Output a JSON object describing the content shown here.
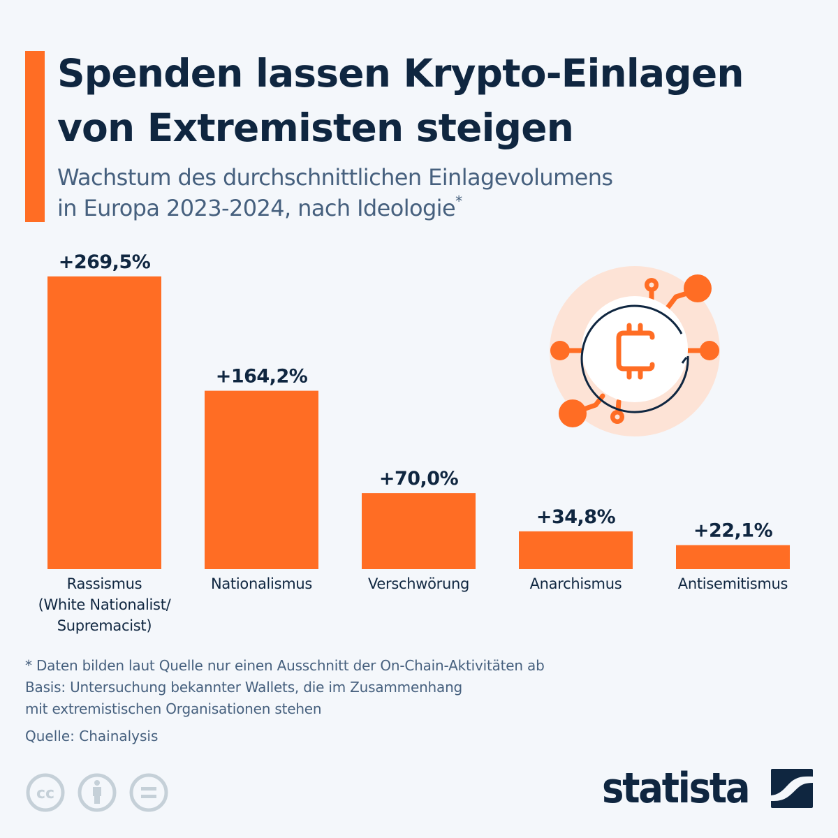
{
  "header": {
    "title": "Spenden lassen Krypto-Einlagen von Extremisten steigen",
    "subtitle_line1": "Wachstum des durchschnittlichen Einlagevolumens",
    "subtitle_line2": "in Europa 2023-2024, nach Ideologie",
    "subtitle_marker": "*"
  },
  "colors": {
    "accent": "#ff6d24",
    "bar": "#ff6d24",
    "text_dark": "#0f2640",
    "text_muted": "#46607e",
    "icon_bg": "#fde3d6",
    "license_grey": "#c5d0d8"
  },
  "chart_data": {
    "type": "bar",
    "title": "Spenden lassen Krypto-Einlagen von Extremisten steigen",
    "subtitle": "Wachstum des durchschnittlichen Einlagevolumens in Europa 2023-2024, nach Ideologie*",
    "xlabel": "",
    "ylabel": "",
    "unit": "%",
    "ylim": [
      0,
      270
    ],
    "grid": false,
    "categories": [
      [
        "Rassismus",
        "(White Nationalist/",
        "Supremacist)"
      ],
      [
        "Nationalismus"
      ],
      [
        "Verschwörung"
      ],
      [
        "Anarchismus"
      ],
      [
        "Antisemitismus"
      ]
    ],
    "values": [
      269.5,
      164.2,
      70.0,
      34.8,
      22.1
    ],
    "labels": [
      "+269,5%",
      "+164,2%",
      "+70,0%",
      "+34,8%",
      "+22,1%"
    ]
  },
  "icon": {
    "name": "crypto-network-icon",
    "symbol": "bitcoin-c"
  },
  "footer": {
    "footnote_line1": "* Daten bilden laut Quelle nur einen Ausschnitt der On-Chain-Aktivitäten ab",
    "footnote_line2": "Basis: Untersuchung bekannter Wallets, die im Zusammenhang",
    "footnote_line3": "mit extremistischen Organisationen stehen",
    "source": "Quelle: Chainalysis",
    "license_icons": [
      "cc-icon",
      "attribution-icon",
      "no-derivatives-icon"
    ],
    "cc_text": "cc",
    "brand": "statista"
  }
}
